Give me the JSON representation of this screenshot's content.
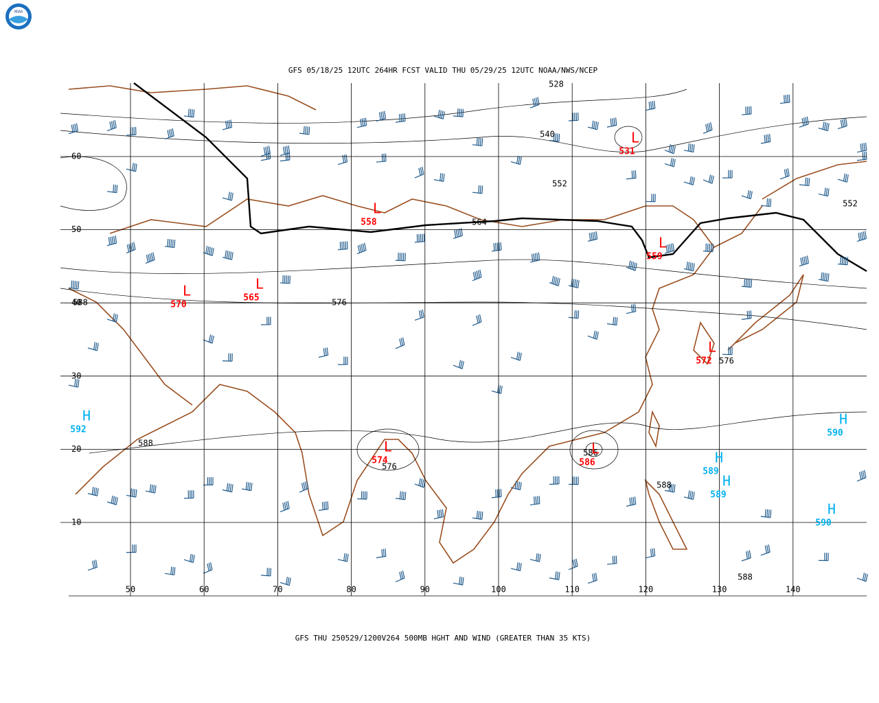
{
  "logo": {
    "text": "NOAA"
  },
  "header": {
    "title": "GFS 05/18/25 12UTC 264HR FCST VALID THU 05/29/25 12UTC NOAA/NWS/NCEP"
  },
  "footer": {
    "caption": "GFS THU 250529/1200V264 500MB HGHT AND WIND (GREATER THAN 35 KTS)"
  },
  "axes": {
    "lat_labels": [
      60,
      50,
      40,
      30,
      20,
      10
    ],
    "lon_labels": [
      50,
      60,
      70,
      80,
      90,
      100,
      110,
      120,
      130,
      140
    ]
  },
  "contour_labels": [
    528,
    540,
    552,
    564,
    576,
    588,
    588,
    588,
    588,
    552,
    576,
    576,
    586
  ],
  "centers": [
    {
      "letter": "L",
      "value": 531
    },
    {
      "letter": "L",
      "value": 558
    },
    {
      "letter": "L",
      "value": 559
    },
    {
      "letter": "L",
      "value": 570
    },
    {
      "letter": "L",
      "value": 565
    },
    {
      "letter": "L",
      "value": 572
    },
    {
      "letter": "L",
      "value": 574
    },
    {
      "letter": "L",
      "value": 586
    },
    {
      "letter": "H",
      "value": 592
    },
    {
      "letter": "H",
      "value": 590
    },
    {
      "letter": "H",
      "value": 589
    },
    {
      "letter": "H",
      "value": 589
    },
    {
      "letter": "H",
      "value": 590
    }
  ]
}
